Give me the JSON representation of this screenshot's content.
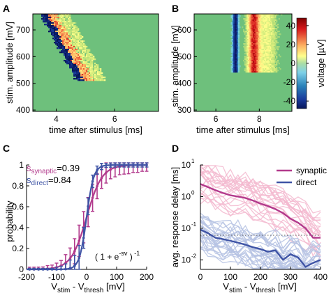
{
  "chart_data": [
    {
      "panel": "A",
      "type": "heatmap",
      "xlabel": "time after stimulus [ms]",
      "ylabel": "stim. amplitude [mV]",
      "xlim": [
        3.2,
        7.5
      ],
      "ylim": [
        395,
        760
      ],
      "xticks": [
        4,
        6
      ],
      "yticks": [
        400,
        500,
        600,
        700
      ],
      "description_values": {
        "trials": 70,
        "response_start_ms_at_top": 3.5,
        "response_start_ms_at_bottom": 4.8,
        "response_amplitude_floor_mV": 510
      }
    },
    {
      "panel": "B",
      "type": "heatmap",
      "xlabel": "time after stimulus [ms]",
      "ylabel": "stim. amplitude [mV]",
      "xlim": [
        5.0,
        9.5
      ],
      "ylim": [
        295,
        660
      ],
      "xticks": [
        6,
        8
      ],
      "yticks": [
        300,
        400,
        500,
        600
      ],
      "colorbar": {
        "label": "voltage [µV]",
        "ticks": [
          40,
          20,
          0,
          -20,
          -40
        ],
        "range": [
          -48,
          48
        ]
      },
      "description_values": {
        "negative_peak_ms": 6.9,
        "positive_peak_ms": 7.8,
        "response_amplitude_floor_mV": 440
      }
    },
    {
      "panel": "C",
      "type": "line",
      "xlabel_parts": [
        "V",
        "stim",
        " - V",
        "thresh",
        " [mV]"
      ],
      "ylabel": "probability",
      "xlim": [
        -200,
        200
      ],
      "ylim": [
        0,
        1
      ],
      "xticks": [
        -200,
        -100,
        0,
        100,
        200
      ],
      "yticks": [
        0,
        0.2,
        0.4,
        0.6,
        0.8,
        1
      ],
      "formula": "( 1 + e^{-sv} )^{-1}",
      "series": [
        {
          "name": "synaptic",
          "label_prefix": "s",
          "label_sub": "synaptic",
          "label_value": "=0.39",
          "slope": 0.039,
          "color": "#b23a8c",
          "x": [
            -190,
            -175,
            -160,
            -145,
            -130,
            -115,
            -100,
            -85,
            -70,
            -55,
            -40,
            -25,
            -10,
            5,
            20,
            35,
            50,
            65,
            80,
            95,
            110,
            125,
            140,
            155,
            170,
            185,
            200
          ],
          "err": [
            0.02,
            0.02,
            0.02,
            0.02,
            0.03,
            0.03,
            0.04,
            0.05,
            0.08,
            0.1,
            0.12,
            0.15,
            0.15,
            0.14,
            0.13,
            0.12,
            0.1,
            0.1,
            0.09,
            0.09,
            0.08,
            0.08,
            0.08,
            0.07,
            0.07,
            0.06,
            0.06
          ]
        },
        {
          "name": "direct",
          "label_prefix": "s",
          "label_sub": "direct",
          "label_value": "=0.84",
          "slope": 0.084,
          "color": "#3f54a5",
          "x": [
            -190,
            -175,
            -160,
            -145,
            -130,
            -115,
            -100,
            -85,
            -70,
            -55,
            -40,
            -25,
            -10,
            5,
            20,
            35,
            50,
            65,
            80,
            95,
            110,
            125,
            140,
            155,
            170,
            185,
            200
          ],
          "err": [
            0.01,
            0.01,
            0.01,
            0.01,
            0.01,
            0.01,
            0.02,
            0.03,
            0.05,
            0.08,
            0.1,
            0.12,
            0.1,
            0.08,
            0.06,
            0.04,
            0.03,
            0.02,
            0.02,
            0.02,
            0.02,
            0.02,
            0.02,
            0.02,
            0.02,
            0.02,
            0.02
          ]
        }
      ]
    },
    {
      "panel": "D",
      "type": "line",
      "xlabel_parts": [
        "V",
        "stim",
        " - V",
        "thresh",
        " [mV]"
      ],
      "ylabel": "avg. response delay [ms]",
      "yscale": "log",
      "xlim": [
        0,
        400
      ],
      "ylim": [
        0.005,
        10
      ],
      "xticks": [
        0,
        100,
        200,
        300,
        400
      ],
      "ytick_exponents": [
        -2,
        -1,
        0,
        1
      ],
      "reference_line_y": 0.06,
      "legend": {
        "placement": "top-right"
      },
      "series": [
        {
          "name": "synaptic",
          "color": "#b23a8c",
          "light_color": "#f3b9cf",
          "x": [
            0,
            25,
            50,
            75,
            100,
            125,
            150,
            175,
            200,
            225,
            250,
            275,
            300,
            325,
            350,
            375,
            400
          ],
          "y": [
            2.5,
            2.0,
            1.6,
            1.3,
            1.1,
            1.0,
            0.9,
            0.75,
            0.6,
            0.5,
            0.4,
            0.3,
            0.2,
            0.15,
            0.1,
            0.05,
            0.05
          ]
        },
        {
          "name": "direct",
          "color": "#3f54a5",
          "light_color": "#b5c2e3",
          "x": [
            0,
            25,
            50,
            75,
            100,
            125,
            150,
            175,
            200,
            225,
            250,
            275,
            300,
            325,
            350,
            375,
            400
          ],
          "y": [
            0.09,
            0.07,
            0.05,
            0.045,
            0.04,
            0.035,
            0.03,
            0.025,
            0.022,
            0.018,
            0.02,
            0.01,
            0.015,
            0.012,
            0.006,
            0.008,
            0.01
          ]
        }
      ]
    }
  ]
}
